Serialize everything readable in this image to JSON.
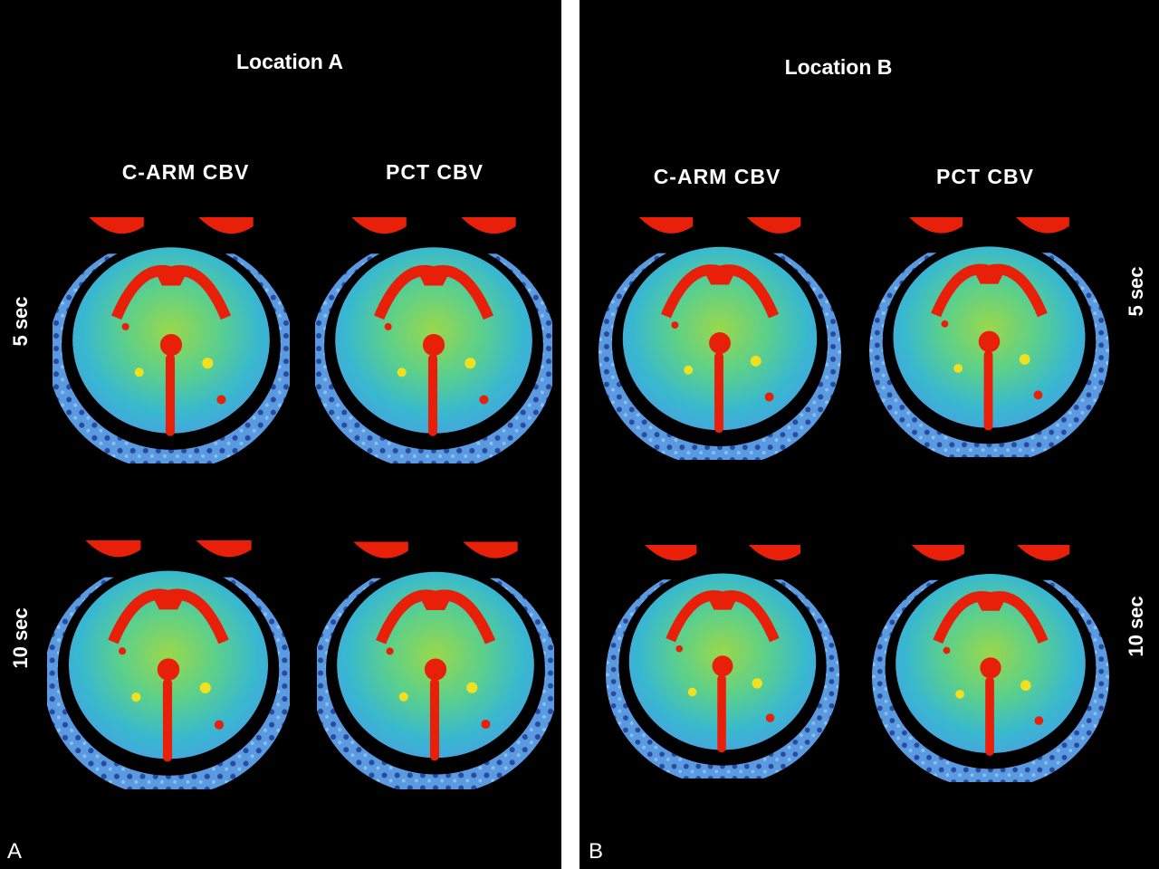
{
  "panels": [
    {
      "letter": "A",
      "title": "Location A",
      "columns": [
        "C-ARM CBV",
        "PCT CBV"
      ],
      "rows": [
        "5 sec",
        "10 sec"
      ]
    },
    {
      "letter": "B",
      "title": "Location B",
      "columns": [
        "C-ARM CBV",
        "PCT CBV"
      ],
      "rows": [
        "5 sec",
        "10 sec"
      ]
    }
  ]
}
